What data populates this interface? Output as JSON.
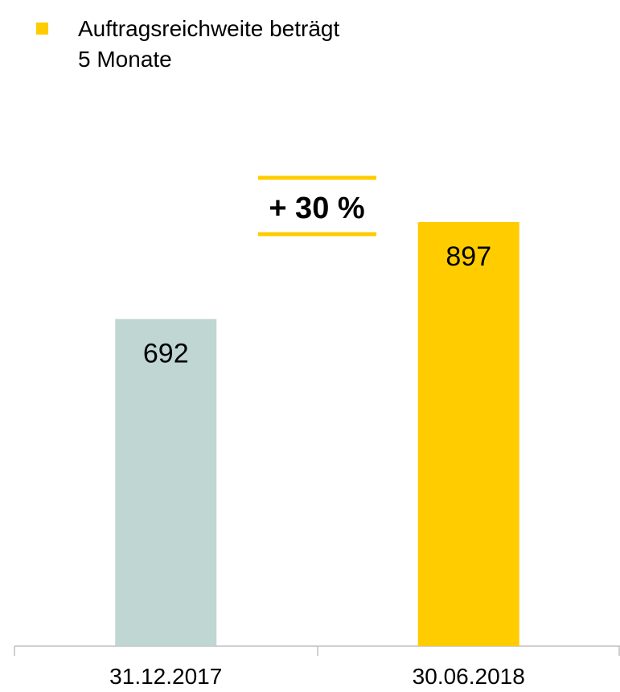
{
  "chart_data": {
    "type": "bar",
    "bullet_text": [
      "Auftragsreichweite beträgt",
      "5 Monate"
    ],
    "annotation": "+ 30 %",
    "categories": [
      "31.12.2017",
      "30.06.2018"
    ],
    "values": [
      692,
      897
    ],
    "colors": [
      "#bfd6d2",
      "#ffcc00"
    ]
  }
}
